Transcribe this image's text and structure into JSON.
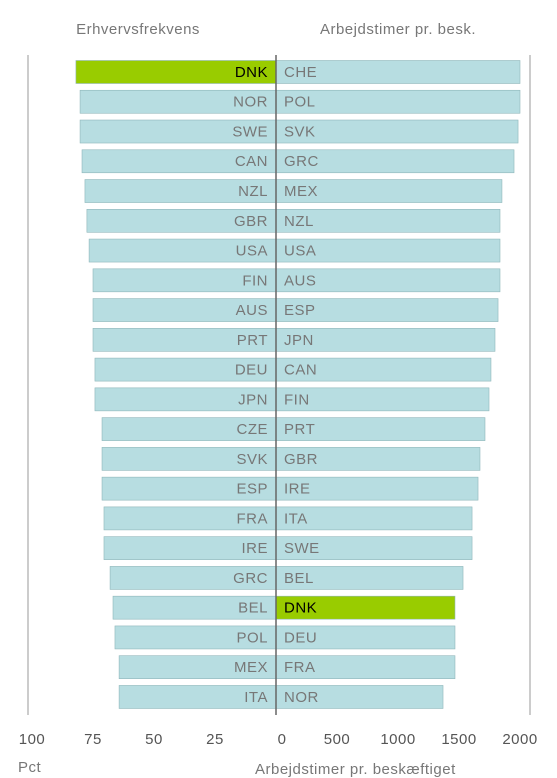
{
  "chart_data": [
    {
      "type": "bar",
      "orientation": "horizontal",
      "title": "Erhvervsfrekvens",
      "xlabel": "Pct",
      "categories": [
        "DNK",
        "NOR",
        "SWE",
        "CAN",
        "NZL",
        "GBR",
        "USA",
        "FIN",
        "AUS",
        "PRT",
        "DEU",
        "JPN",
        "CZE",
        "SVK",
        "ESP",
        "FRA",
        "IRE",
        "GRC",
        "BEL",
        "POL",
        "MEX",
        "ITA"
      ],
      "values": [
        82,
        80.3,
        80.3,
        79.5,
        78.3,
        77.5,
        76.6,
        75,
        75,
        75,
        74.2,
        74.2,
        71.3,
        71.3,
        71.3,
        70.5,
        70.5,
        68,
        66.8,
        66,
        64.3,
        64.3
      ],
      "colors": [
        "#99cc00",
        "#b7dde1",
        "#b7dde1",
        "#b7dde1",
        "#b7dde1",
        "#b7dde1",
        "#b7dde1",
        "#b7dde1",
        "#b7dde1",
        "#b7dde1",
        "#b7dde1",
        "#b7dde1",
        "#b7dde1",
        "#b7dde1",
        "#b7dde1",
        "#b7dde1",
        "#b7dde1",
        "#b7dde1",
        "#b7dde1",
        "#b7dde1",
        "#b7dde1",
        "#b7dde1"
      ],
      "xlim": [
        100,
        0
      ],
      "xticks": [
        100,
        75,
        50,
        25
      ]
    },
    {
      "type": "bar",
      "orientation": "horizontal",
      "title": "Arbejdstimer pr. besk.",
      "xlabel": "Arbejdstimer pr. beskæftiget",
      "categories": [
        "CHE",
        "POL",
        "SVK",
        "GRC",
        "MEX",
        "NZL",
        "USA",
        "AUS",
        "ESP",
        "JPN",
        "CAN",
        "FIN",
        "PRT",
        "GBR",
        "IRE",
        "ITA",
        "SWE",
        "BEL",
        "DNK",
        "DEU",
        "FRA",
        "NOR"
      ],
      "values": [
        2000,
        2000,
        1984,
        1951,
        1852,
        1836,
        1836,
        1836,
        1820,
        1795,
        1762,
        1746,
        1713,
        1672,
        1656,
        1607,
        1607,
        1533,
        1467,
        1467,
        1467,
        1369
      ],
      "colors": [
        "#b7dde1",
        "#b7dde1",
        "#b7dde1",
        "#b7dde1",
        "#b7dde1",
        "#b7dde1",
        "#b7dde1",
        "#b7dde1",
        "#b7dde1",
        "#b7dde1",
        "#b7dde1",
        "#b7dde1",
        "#b7dde1",
        "#b7dde1",
        "#b7dde1",
        "#b7dde1",
        "#b7dde1",
        "#b7dde1",
        "#99cc00",
        "#b7dde1",
        "#b7dde1",
        "#b7dde1"
      ],
      "xlim": [
        0,
        2000
      ],
      "xticks": [
        0,
        500,
        1000,
        1500,
        2000
      ]
    }
  ]
}
